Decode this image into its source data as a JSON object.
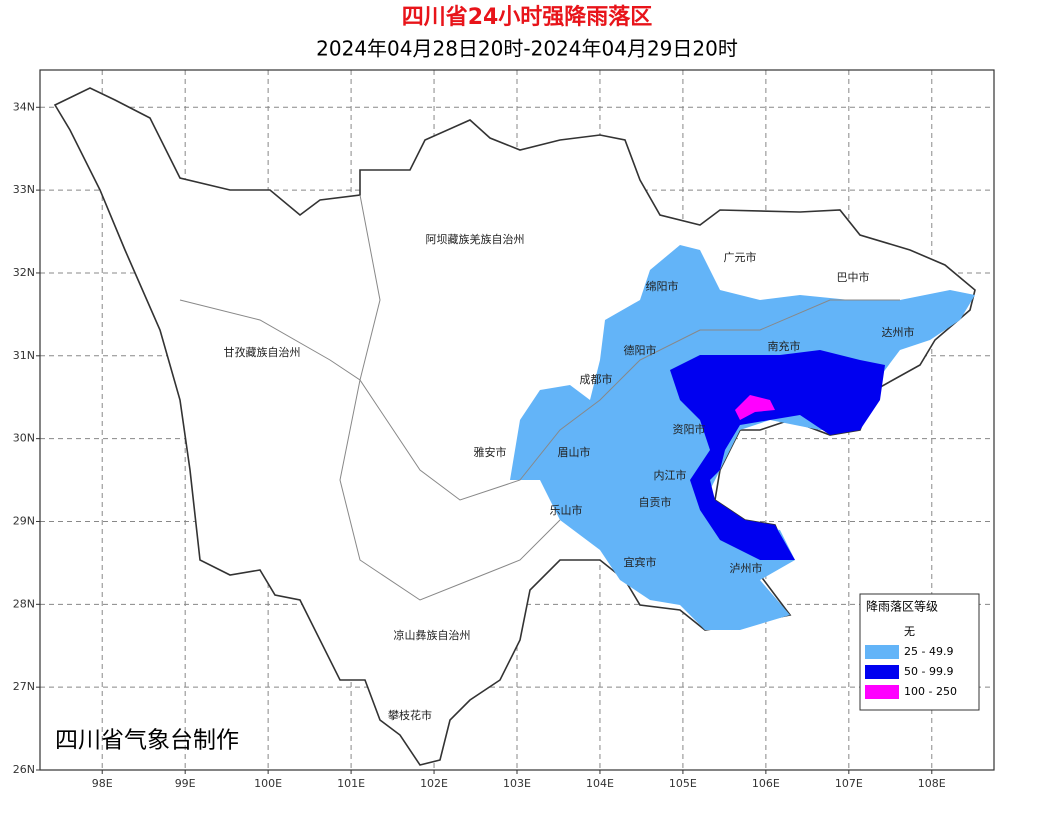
{
  "map": {
    "title": "四川省24小时强降雨落区",
    "subtitle": "2024年04月28日20时-2024年04月29日20时",
    "xlim": [
      97.25,
      108.75
    ],
    "ylim": [
      26,
      34.45
    ],
    "xticks": [
      {
        "value": 98,
        "label": "98E"
      },
      {
        "value": 99,
        "label": "99E"
      },
      {
        "value": 100,
        "label": "100E"
      },
      {
        "value": 101,
        "label": "101E"
      },
      {
        "value": 102,
        "label": "102E"
      },
      {
        "value": 103,
        "label": "103E"
      },
      {
        "value": 104,
        "label": "104E"
      },
      {
        "value": 105,
        "label": "105E"
      },
      {
        "value": 106,
        "label": "106E"
      },
      {
        "value": 107,
        "label": "107E"
      },
      {
        "value": 108,
        "label": "108E"
      }
    ],
    "yticks": [
      {
        "value": 26,
        "label": "26N"
      },
      {
        "value": 27,
        "label": "27N"
      },
      {
        "value": 28,
        "label": "28N"
      },
      {
        "value": 29,
        "label": "29N"
      },
      {
        "value": 30,
        "label": "30N"
      },
      {
        "value": 31,
        "label": "31N"
      },
      {
        "value": 32,
        "label": "32N"
      },
      {
        "value": 33,
        "label": "33N"
      },
      {
        "value": 34,
        "label": "34N"
      }
    ],
    "grid": true,
    "places": [
      "阿坝藏族羌族自治州",
      "甘孜藏族自治州",
      "凉山彝族自治州",
      "攀枝花市",
      "雅安市",
      "眉山市",
      "乐山市",
      "成都市",
      "德阳市",
      "绵阳市",
      "广元市",
      "巴中市",
      "达州市",
      "南充市",
      "资阳市",
      "内江市",
      "自贡市",
      "宜宾市",
      "泸州市"
    ],
    "legend": {
      "title": "降雨落区等级",
      "entries": [
        {
          "label": "无",
          "color": "#ffffff"
        },
        {
          "label": "25 - 49.9",
          "color": "#63b4f8"
        },
        {
          "label": "50 - 99.9",
          "color": "#0000f0"
        },
        {
          "label": "100 - 250",
          "color": "#ff00ff"
        }
      ]
    },
    "credit": "四川省气象台制作"
  }
}
